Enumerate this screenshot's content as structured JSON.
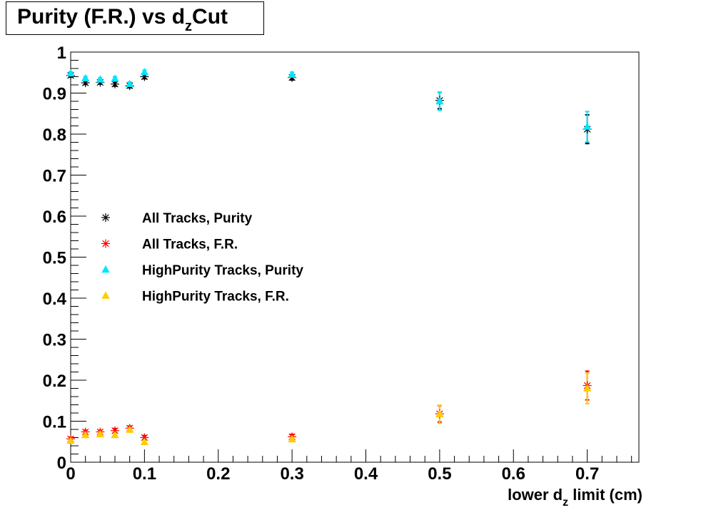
{
  "chart_data": {
    "type": "scatter",
    "title": {
      "main": "Purity (F.R.) vs d",
      "sub": "z",
      "tail": "Cut"
    },
    "xlabel": {
      "main": "lower d",
      "sub": "z",
      "tail": " limit (cm)"
    },
    "ylabel": "",
    "xlim": [
      0,
      0.77
    ],
    "ylim": [
      0,
      1
    ],
    "x_ticks": [
      {
        "v": 0,
        "label": "0"
      },
      {
        "v": 0.1,
        "label": "0.1"
      },
      {
        "v": 0.2,
        "label": "0.2"
      },
      {
        "v": 0.3,
        "label": "0.3"
      },
      {
        "v": 0.4,
        "label": "0.4"
      },
      {
        "v": 0.5,
        "label": "0.5"
      },
      {
        "v": 0.6,
        "label": "0.6"
      },
      {
        "v": 0.7,
        "label": "0.7"
      }
    ],
    "y_ticks": [
      {
        "v": 0,
        "label": "0"
      },
      {
        "v": 0.1,
        "label": "0.1"
      },
      {
        "v": 0.2,
        "label": "0.2"
      },
      {
        "v": 0.3,
        "label": "0.3"
      },
      {
        "v": 0.4,
        "label": "0.4"
      },
      {
        "v": 0.5,
        "label": "0.5"
      },
      {
        "v": 0.6,
        "label": "0.6"
      },
      {
        "v": 0.7,
        "label": "0.7"
      },
      {
        "v": 0.8,
        "label": "0.8"
      },
      {
        "v": 0.9,
        "label": "0.9"
      },
      {
        "v": 1,
        "label": "1"
      }
    ],
    "grid": false,
    "legend_position": "middle-left",
    "series": [
      {
        "name": "All Tracks, Purity",
        "marker": "star",
        "color": "#000000",
        "x": [
          0,
          0.02,
          0.04,
          0.06,
          0.08,
          0.1,
          0.3,
          0.5,
          0.7
        ],
        "y": [
          0.943,
          0.925,
          0.926,
          0.922,
          0.918,
          0.94,
          0.938,
          0.882,
          0.812
        ],
        "err": [
          0.004,
          0.004,
          0.004,
          0.005,
          0.005,
          0.005,
          0.006,
          0.02,
          0.035
        ]
      },
      {
        "name": "All Tracks, F.R.",
        "marker": "star",
        "color": "#ff0000",
        "x": [
          0,
          0.02,
          0.04,
          0.06,
          0.08,
          0.1,
          0.3,
          0.5,
          0.7
        ],
        "y": [
          0.057,
          0.074,
          0.074,
          0.077,
          0.083,
          0.06,
          0.062,
          0.118,
          0.187
        ],
        "err": [
          0.004,
          0.004,
          0.004,
          0.005,
          0.005,
          0.005,
          0.006,
          0.02,
          0.035
        ]
      },
      {
        "name": "HighPurity Tracks, Purity",
        "marker": "triangle",
        "color": "#00e5ff",
        "x": [
          0,
          0.02,
          0.04,
          0.06,
          0.08,
          0.1,
          0.3,
          0.5,
          0.7
        ],
        "y": [
          0.948,
          0.936,
          0.933,
          0.935,
          0.922,
          0.951,
          0.945,
          0.88,
          0.818
        ],
        "err": [
          0.004,
          0.004,
          0.004,
          0.005,
          0.005,
          0.005,
          0.006,
          0.022,
          0.037
        ]
      },
      {
        "name": "HighPurity Tracks, F.R.",
        "marker": "triangle",
        "color": "#ffcc00",
        "x": [
          0,
          0.02,
          0.04,
          0.06,
          0.08,
          0.1,
          0.3,
          0.5,
          0.7
        ],
        "y": [
          0.052,
          0.066,
          0.068,
          0.066,
          0.079,
          0.049,
          0.056,
          0.117,
          0.18
        ],
        "err": [
          0.004,
          0.004,
          0.004,
          0.005,
          0.005,
          0.005,
          0.006,
          0.022,
          0.037
        ]
      }
    ]
  }
}
